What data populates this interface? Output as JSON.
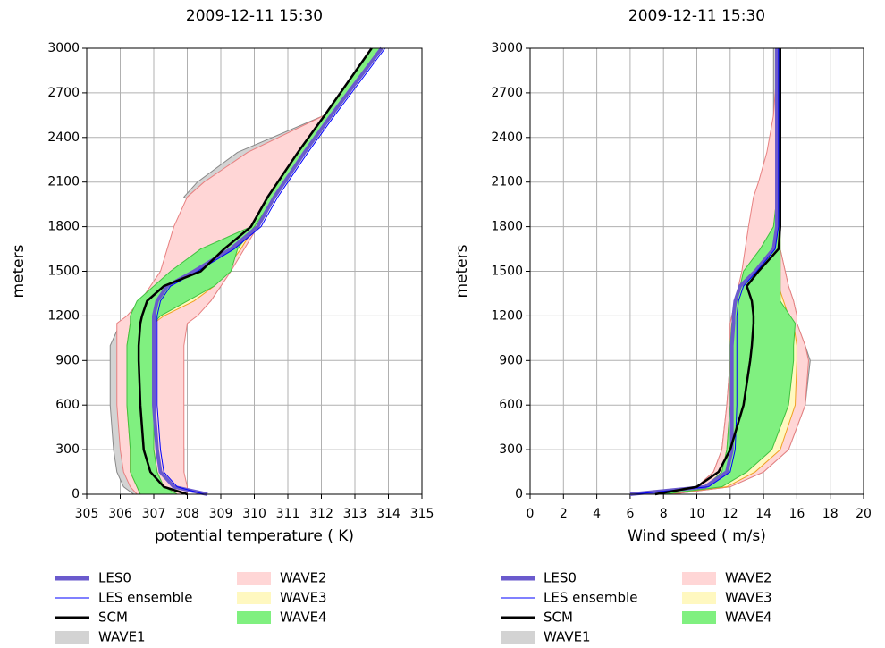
{
  "chart_data": [
    {
      "type": "line",
      "title": "2009-12-11 15:30",
      "xlabel": "potential temperature ( K)",
      "ylabel": "meters",
      "xlim": [
        305,
        315
      ],
      "xticks": [
        305,
        306,
        307,
        308,
        309,
        310,
        311,
        312,
        313,
        314,
        315
      ],
      "ylim": [
        0,
        3000
      ],
      "yticks": [
        0,
        300,
        600,
        900,
        1200,
        1500,
        1800,
        2100,
        2400,
        2700,
        3000
      ],
      "grid": true,
      "y": [
        0,
        50,
        150,
        300,
        600,
        900,
        1000,
        1150,
        1200,
        1300,
        1400,
        1500,
        1650,
        1800,
        2000,
        2100,
        2300,
        2550,
        3000
      ],
      "series": [
        {
          "name": "LES0",
          "kind": "line",
          "color": "#6a5acd",
          "values": [
            308.6,
            307.6,
            307.2,
            307.1,
            307.0,
            307.0,
            307.0,
            307.0,
            307.0,
            307.1,
            307.4,
            308.2,
            309.3,
            310.1,
            310.6,
            310.9,
            311.5,
            312.3,
            313.8
          ]
        },
        {
          "name": "LES ensemble",
          "kind": "line",
          "color": "#0000ff",
          "values": [
            308.5,
            307.7,
            307.3,
            307.2,
            307.1,
            307.1,
            307.1,
            307.1,
            307.1,
            307.2,
            307.5,
            308.3,
            309.4,
            310.2,
            310.7,
            311.0,
            311.6,
            312.4,
            313.9
          ]
        },
        {
          "name": "SCM",
          "kind": "line",
          "color": "#000000",
          "values": [
            308.0,
            307.3,
            306.9,
            306.7,
            306.6,
            306.55,
            306.55,
            306.6,
            306.65,
            306.8,
            307.3,
            308.4,
            309.1,
            309.9,
            310.4,
            310.7,
            311.3,
            312.1,
            313.5
          ]
        },
        {
          "name": "WAVE1",
          "kind": "band",
          "color": "#d3d3d3",
          "edgecolor": "#888888",
          "low": [
            306.4,
            306.1,
            305.9,
            305.8,
            305.7,
            305.7,
            305.7,
            306.0,
            306.2,
            306.6,
            307.0,
            307.6,
            308.4,
            309.3,
            307.9,
            308.3,
            309.5,
            312.1,
            313.5
          ],
          "high": [
            307.9,
            307.9,
            307.9,
            307.9,
            307.8,
            307.8,
            307.8,
            307.9,
            308.2,
            308.7,
            309.0,
            309.2,
            309.6,
            310.0,
            310.6,
            310.9,
            311.5,
            312.3,
            313.8
          ]
        },
        {
          "name": "WAVE2",
          "kind": "band",
          "color": "#ffd6d6",
          "edgecolor": "#e88080",
          "low": [
            306.5,
            306.3,
            306.1,
            306.0,
            305.9,
            305.9,
            305.9,
            305.9,
            306.2,
            306.6,
            306.9,
            307.2,
            307.4,
            307.6,
            308.0,
            308.5,
            309.8,
            312.1,
            313.5
          ],
          "high": [
            308.0,
            308.0,
            307.9,
            307.9,
            307.9,
            307.9,
            307.9,
            308.0,
            308.3,
            308.7,
            309.0,
            309.3,
            309.7,
            310.1,
            310.6,
            310.9,
            311.5,
            312.3,
            313.8
          ]
        },
        {
          "name": "WAVE3",
          "kind": "band",
          "color": "#fff8c0",
          "edgecolor": "#f0a020",
          "low": [
            306.6,
            306.5,
            306.3,
            306.3,
            306.2,
            306.2,
            306.2,
            306.3,
            306.4,
            306.8,
            307.3,
            308.0,
            309.0,
            310.0,
            310.4,
            310.7,
            311.3,
            312.1,
            313.5
          ],
          "high": [
            307.7,
            307.3,
            307.1,
            307.0,
            307.0,
            307.0,
            307.0,
            307.0,
            307.3,
            308.2,
            308.8,
            309.1,
            309.6,
            310.0,
            310.6,
            310.9,
            311.5,
            312.3,
            313.8
          ]
        },
        {
          "name": "WAVE4",
          "kind": "band",
          "color": "#80f080",
          "edgecolor": "#40c040",
          "low": [
            306.6,
            306.5,
            306.3,
            306.3,
            306.2,
            306.2,
            306.2,
            306.3,
            306.3,
            306.5,
            307.0,
            307.5,
            308.4,
            309.9,
            310.4,
            310.7,
            311.3,
            312.1,
            313.5
          ],
          "high": [
            307.7,
            307.3,
            307.1,
            307.0,
            307.0,
            307.0,
            307.0,
            307.0,
            307.2,
            308.0,
            308.8,
            309.3,
            309.5,
            310.0,
            310.6,
            310.9,
            311.5,
            312.3,
            313.8
          ]
        }
      ]
    },
    {
      "type": "line",
      "title": "2009-12-11 15:30",
      "xlabel": "Wind speed ( m/s)",
      "ylabel": "meters",
      "xlim": [
        0,
        20
      ],
      "xticks": [
        0,
        2,
        4,
        6,
        8,
        10,
        12,
        14,
        16,
        18,
        20
      ],
      "ylim": [
        0,
        3000
      ],
      "yticks": [
        0,
        300,
        600,
        900,
        1200,
        1500,
        1800,
        2100,
        2400,
        2700,
        3000
      ],
      "grid": true,
      "y": [
        0,
        50,
        150,
        300,
        600,
        900,
        1000,
        1150,
        1200,
        1300,
        1400,
        1500,
        1650,
        1800,
        2000,
        2100,
        2300,
        2550,
        3000
      ],
      "series": [
        {
          "name": "LES0",
          "kind": "line",
          "color": "#6a5acd",
          "values": [
            6.0,
            10.5,
            11.8,
            12.1,
            12.1,
            12.1,
            12.1,
            12.2,
            12.2,
            12.3,
            12.6,
            13.5,
            14.6,
            14.8,
            14.8,
            14.8,
            14.8,
            14.8,
            14.8
          ]
        },
        {
          "name": "LES ensemble",
          "kind": "line",
          "color": "#0000ff",
          "values": [
            6.2,
            10.7,
            12.0,
            12.3,
            12.4,
            12.4,
            12.4,
            12.4,
            12.4,
            12.5,
            12.8,
            13.6,
            14.7,
            14.9,
            14.9,
            14.9,
            14.9,
            14.9,
            14.9
          ]
        },
        {
          "name": "SCM",
          "kind": "line",
          "color": "#000000",
          "values": [
            7.5,
            10.0,
            11.3,
            12.0,
            12.8,
            13.2,
            13.3,
            13.4,
            13.4,
            13.3,
            13.0,
            13.7,
            14.9,
            15.0,
            15.0,
            15.0,
            15.0,
            15.0,
            15.0
          ]
        },
        {
          "name": "WAVE1",
          "kind": "band",
          "color": "#d3d3d3",
          "edgecolor": "#888888",
          "low": [
            7.0,
            10.0,
            11.0,
            11.5,
            11.8,
            12.0,
            12.0,
            12.0,
            12.1,
            12.3,
            12.5,
            12.9,
            13.3,
            13.6,
            13.8,
            14.0,
            14.5,
            14.6,
            14.6
          ],
          "high": [
            8.5,
            12.0,
            14.0,
            15.5,
            16.5,
            16.8,
            16.5,
            16.0,
            16.0,
            15.8,
            15.5,
            15.3,
            15.0,
            15.0,
            15.0,
            15.0,
            15.0,
            15.0,
            15.0
          ]
        },
        {
          "name": "WAVE2",
          "kind": "band",
          "color": "#ffd6d6",
          "edgecolor": "#e88080",
          "low": [
            7.0,
            10.0,
            11.0,
            11.5,
            11.8,
            12.0,
            12.0,
            12.0,
            12.1,
            12.3,
            12.5,
            12.7,
            12.9,
            13.1,
            13.4,
            13.7,
            14.2,
            14.6,
            14.9
          ],
          "high": [
            8.5,
            12.0,
            14.0,
            15.5,
            16.5,
            16.7,
            16.5,
            16.0,
            16.0,
            15.8,
            15.5,
            15.3,
            15.0,
            15.0,
            15.0,
            15.0,
            15.0,
            15.0,
            15.0
          ]
        },
        {
          "name": "WAVE3",
          "kind": "band",
          "color": "#fff8c0",
          "edgecolor": "#f0a020",
          "low": [
            7.0,
            10.5,
            11.5,
            11.8,
            12.0,
            12.0,
            12.0,
            12.1,
            12.2,
            12.4,
            12.6,
            12.9,
            13.9,
            14.6,
            14.8,
            14.8,
            14.8,
            14.8,
            14.8
          ],
          "high": [
            8.0,
            11.8,
            13.5,
            15.0,
            15.9,
            16.0,
            16.0,
            15.8,
            15.5,
            15.2,
            14.9,
            14.9,
            14.9,
            14.9,
            14.9,
            14.9,
            14.9,
            14.9,
            14.9
          ]
        },
        {
          "name": "WAVE4",
          "kind": "band",
          "color": "#80f080",
          "edgecolor": "#40c040",
          "low": [
            7.0,
            10.5,
            11.5,
            11.8,
            12.0,
            12.0,
            12.0,
            12.1,
            12.2,
            12.4,
            12.6,
            12.8,
            13.8,
            14.6,
            14.8,
            14.8,
            14.8,
            14.8,
            14.8
          ],
          "high": [
            8.0,
            11.5,
            13.0,
            14.5,
            15.5,
            15.8,
            15.8,
            15.9,
            15.6,
            15.0,
            15.0,
            15.0,
            15.0,
            15.0,
            14.9,
            14.9,
            14.9,
            14.9,
            14.9
          ]
        }
      ]
    }
  ]
}
